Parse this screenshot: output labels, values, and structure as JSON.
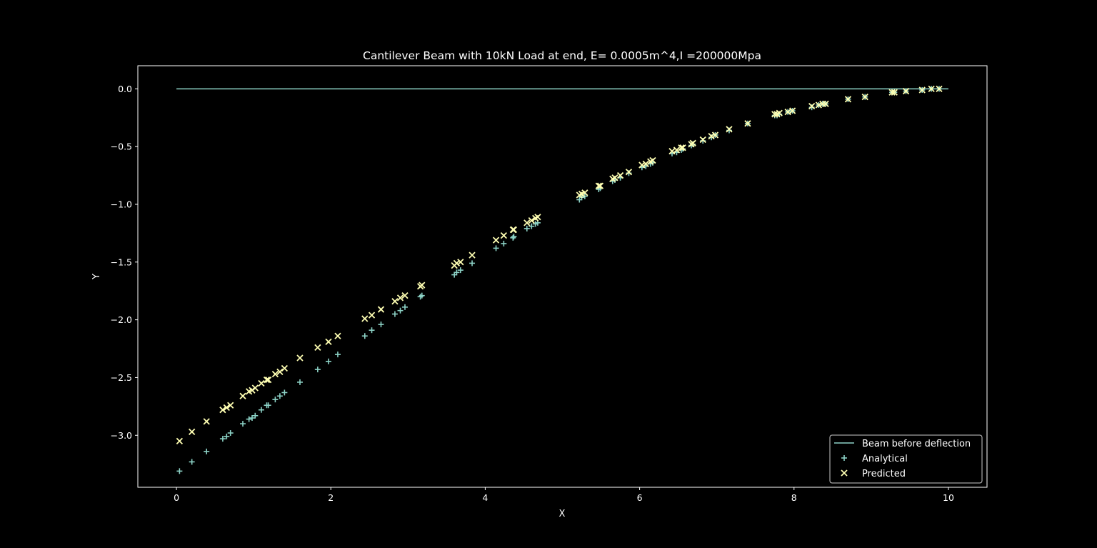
{
  "colors": {
    "background": "#000000",
    "foreground": "#ffffff",
    "beam": "#8dd3c7",
    "analytical": "#8dd3c7",
    "predicted": "#ffffb3"
  },
  "chart_data": {
    "type": "scatter",
    "title": "Cantilever Beam with 10kN Load at end, E= 0.0005m^4,I =200000Mpa",
    "xlabel": "X",
    "ylabel": "Y",
    "xlim": [
      -0.5,
      10.5
    ],
    "ylim": [
      -3.45,
      0.2
    ],
    "xticks": [
      0,
      2,
      4,
      6,
      8,
      10
    ],
    "xtick_labels": [
      "0",
      "2",
      "4",
      "6",
      "8",
      "10"
    ],
    "yticks": [
      0.0,
      -0.5,
      -1.0,
      -1.5,
      -2.0,
      -2.5,
      -3.0
    ],
    "ytick_labels": [
      "0.0",
      "−0.5",
      "−1.0",
      "−1.5",
      "−2.0",
      "−2.5",
      "−3.0"
    ],
    "grid": false,
    "legend_position": "lower-right",
    "series": [
      {
        "name": "Beam before deflection",
        "kind": "line",
        "x": [
          0,
          10
        ],
        "y": [
          0,
          0
        ]
      },
      {
        "name": "Analytical",
        "kind": "scatter",
        "marker": "plus",
        "x": [
          0.04,
          0.2,
          0.39,
          0.6,
          0.65,
          0.7,
          0.86,
          0.94,
          0.98,
          1.02,
          1.1,
          1.17,
          1.19,
          1.28,
          1.34,
          1.4,
          1.6,
          1.83,
          1.97,
          2.09,
          2.44,
          2.53,
          2.65,
          2.83,
          2.9,
          2.96,
          3.16,
          3.18,
          3.6,
          3.63,
          3.68,
          3.83,
          4.14,
          4.24,
          4.36,
          4.37,
          4.54,
          4.6,
          4.65,
          4.68,
          5.22,
          5.25,
          5.29,
          5.47,
          5.49,
          5.65,
          5.68,
          5.75,
          5.86,
          6.03,
          6.08,
          6.14,
          6.17,
          6.42,
          6.48,
          6.54,
          6.56,
          6.67,
          6.69,
          6.82,
          6.93,
          6.98,
          7.16,
          7.4,
          7.75,
          7.78,
          7.81,
          7.92,
          7.98,
          8.23,
          8.32,
          8.37,
          8.41,
          8.7,
          8.92,
          9.27,
          9.3,
          9.45,
          9.66,
          9.78,
          9.88
        ],
        "y": [
          -3.31,
          -3.23,
          -3.14,
          -3.03,
          -3.01,
          -2.98,
          -2.9,
          -2.86,
          -2.85,
          -2.83,
          -2.78,
          -2.74,
          -2.74,
          -2.69,
          -2.66,
          -2.63,
          -2.54,
          -2.43,
          -2.36,
          -2.3,
          -2.14,
          -2.09,
          -2.04,
          -1.95,
          -1.92,
          -1.89,
          -1.8,
          -1.79,
          -1.61,
          -1.59,
          -1.57,
          -1.51,
          -1.38,
          -1.34,
          -1.29,
          -1.28,
          -1.21,
          -1.19,
          -1.17,
          -1.16,
          -0.96,
          -0.94,
          -0.93,
          -0.87,
          -0.86,
          -0.8,
          -0.79,
          -0.77,
          -0.73,
          -0.68,
          -0.67,
          -0.65,
          -0.64,
          -0.56,
          -0.55,
          -0.53,
          -0.52,
          -0.49,
          -0.48,
          -0.45,
          -0.42,
          -0.4,
          -0.36,
          -0.3,
          -0.23,
          -0.23,
          -0.22,
          -0.2,
          -0.19,
          -0.16,
          -0.14,
          -0.13,
          -0.13,
          -0.09,
          -0.07,
          -0.03,
          -0.03,
          -0.02,
          -0.01,
          0.0,
          0.0
        ]
      },
      {
        "name": "Predicted",
        "kind": "scatter",
        "marker": "x",
        "x": [
          0.04,
          0.2,
          0.39,
          0.6,
          0.65,
          0.7,
          0.86,
          0.94,
          0.98,
          1.02,
          1.1,
          1.17,
          1.19,
          1.28,
          1.34,
          1.4,
          1.6,
          1.83,
          1.97,
          2.09,
          2.44,
          2.53,
          2.65,
          2.83,
          2.9,
          2.96,
          3.16,
          3.18,
          3.6,
          3.63,
          3.68,
          3.83,
          4.14,
          4.24,
          4.36,
          4.37,
          4.54,
          4.6,
          4.65,
          4.68,
          5.22,
          5.25,
          5.29,
          5.47,
          5.49,
          5.65,
          5.68,
          5.75,
          5.86,
          6.03,
          6.08,
          6.14,
          6.17,
          6.42,
          6.48,
          6.54,
          6.56,
          6.67,
          6.69,
          6.82,
          6.93,
          6.98,
          7.16,
          7.4,
          7.75,
          7.78,
          7.81,
          7.92,
          7.98,
          8.23,
          8.32,
          8.37,
          8.41,
          8.7,
          8.92,
          9.27,
          9.3,
          9.45,
          9.66,
          9.78,
          9.88
        ],
        "y": [
          -3.05,
          -2.97,
          -2.88,
          -2.78,
          -2.76,
          -2.74,
          -2.66,
          -2.62,
          -2.61,
          -2.59,
          -2.55,
          -2.52,
          -2.52,
          -2.47,
          -2.45,
          -2.42,
          -2.33,
          -2.24,
          -2.19,
          -2.14,
          -1.99,
          -1.96,
          -1.91,
          -1.84,
          -1.81,
          -1.79,
          -1.71,
          -1.7,
          -1.53,
          -1.51,
          -1.5,
          -1.44,
          -1.31,
          -1.27,
          -1.22,
          -1.22,
          -1.16,
          -1.14,
          -1.12,
          -1.11,
          -0.92,
          -0.91,
          -0.9,
          -0.84,
          -0.84,
          -0.78,
          -0.77,
          -0.75,
          -0.72,
          -0.66,
          -0.65,
          -0.63,
          -0.62,
          -0.54,
          -0.53,
          -0.51,
          -0.51,
          -0.48,
          -0.47,
          -0.44,
          -0.41,
          -0.4,
          -0.35,
          -0.3,
          -0.22,
          -0.22,
          -0.21,
          -0.2,
          -0.19,
          -0.15,
          -0.14,
          -0.13,
          -0.13,
          -0.09,
          -0.07,
          -0.03,
          -0.03,
          -0.02,
          -0.01,
          0.0,
          0.0
        ]
      }
    ]
  }
}
